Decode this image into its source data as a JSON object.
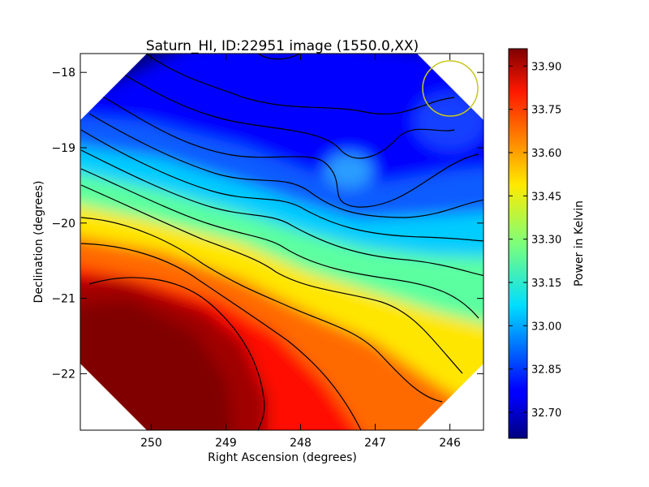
{
  "chart_data": {
    "type": "heatmap",
    "title": "Saturn_HI, ID:22951 image (1550.0,XX)",
    "xlabel": "Right Ascension (degrees)",
    "ylabel": "Declination (degrees)",
    "x_ticks": [
      "250",
      "249",
      "248",
      "247",
      "246"
    ],
    "x_tick_values": [
      250,
      249,
      248,
      247,
      246
    ],
    "y_ticks": [
      "−18",
      "−19",
      "−20",
      "−21",
      "−22"
    ],
    "y_tick_values": [
      -18,
      -19,
      -20,
      -21,
      -22
    ],
    "xlim": [
      250.95,
      245.55
    ],
    "ylim": [
      -22.75,
      -17.75
    ],
    "x_axis_inverted": true,
    "colorbar": {
      "label": "Power in Kelvin",
      "colormap": "jet",
      "range": [
        32.61,
        33.96
      ],
      "ticks": [
        "32.70",
        "32.85",
        "33.00",
        "33.15",
        "33.30",
        "33.45",
        "33.60",
        "33.75",
        "33.90"
      ],
      "tick_values": [
        32.7,
        32.85,
        33.0,
        33.15,
        33.3,
        33.45,
        33.6,
        33.75,
        33.9
      ]
    },
    "field_shape": "octagon",
    "contours": true,
    "grid": false,
    "gradient": "high values in lower-left, low values in upper-right",
    "min_value_approx": 32.62,
    "max_value_approx": 33.95,
    "beam_marker": {
      "shape": "circle",
      "color": "#c8c81e",
      "center_ra": 246.0,
      "center_dec": -18.2
    }
  }
}
